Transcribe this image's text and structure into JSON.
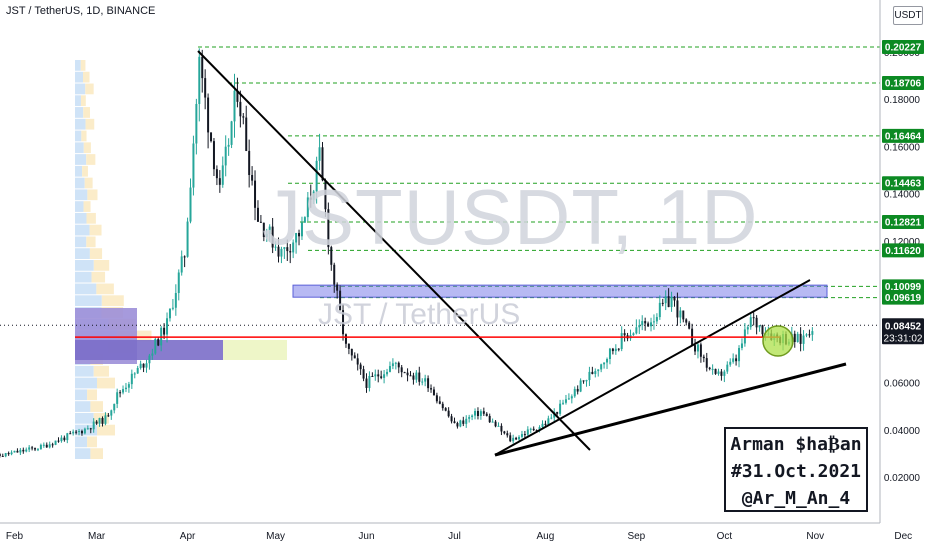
{
  "header": {
    "symbol_title": "JST / TetherUS, 1D, BINANCE",
    "currency": "USDT"
  },
  "watermark": {
    "main": "JSTUSDT, 1D",
    "sub": "JST / TetherUS"
  },
  "signature": {
    "line1": "Arman $ha₿an",
    "line2": "#31.Oct.2021",
    "line3": "@Ar_M_An_4"
  },
  "colors": {
    "up_candle": "#26a69a",
    "down_candle": "#131722",
    "level_line": "#22a022",
    "level_label_bg": "#0c8a23",
    "support_line": "#ff0000",
    "range_box": "#7b7fea",
    "highlight_circle": "#aee04a",
    "last_price_bg": "#131722"
  },
  "chart_data": {
    "type": "candlestick",
    "title": "JST / TetherUS, 1D, BINANCE",
    "exchange": "BINANCE",
    "timeframe": "1D",
    "x_tick_labels": [
      "Feb",
      "Mar",
      "Apr",
      "May",
      "Jun",
      "Jul",
      "Aug",
      "Sep",
      "Oct",
      "Nov",
      "Dec"
    ],
    "y_tick_labels": [
      "0.02000",
      "0.04000",
      "0.06000",
      "0.08000",
      "0.10000",
      "0.12000",
      "0.14000",
      "0.16000",
      "0.18000",
      "0.20000"
    ],
    "ylim": [
      0.011,
      0.2185
    ],
    "levels": [
      {
        "value": 0.20227,
        "label": "0.20227"
      },
      {
        "value": 0.18706,
        "label": "0.18706"
      },
      {
        "value": 0.16464,
        "label": "0.16464"
      },
      {
        "value": 0.14463,
        "label": "0.14463"
      },
      {
        "value": 0.12821,
        "label": "0.12821"
      },
      {
        "value": 0.1162,
        "label": "0.11620"
      },
      {
        "value": 0.10099,
        "label": "0.10099"
      },
      {
        "value": 0.09619,
        "label": "0.09619"
      }
    ],
    "support_level": 0.0795,
    "resistance_zone": [
      0.0964,
      0.1015
    ],
    "last_price": {
      "value": 0.08452,
      "label": "0.08452",
      "countdown": "23:31:02"
    },
    "price_path": [
      {
        "date": "2021-01-22",
        "price": 0.028
      },
      {
        "date": "2021-02-10",
        "price": 0.033
      },
      {
        "date": "2021-02-24",
        "price": 0.04
      },
      {
        "date": "2021-03-04",
        "price": 0.045
      },
      {
        "date": "2021-03-08",
        "price": 0.055
      },
      {
        "date": "2021-03-18",
        "price": 0.07
      },
      {
        "date": "2021-03-25",
        "price": 0.085
      },
      {
        "date": "2021-03-31",
        "price": 0.115
      },
      {
        "date": "2021-04-05",
        "price": 0.195
      },
      {
        "date": "2021-04-12",
        "price": 0.14
      },
      {
        "date": "2021-04-18",
        "price": 0.185
      },
      {
        "date": "2021-04-25",
        "price": 0.13
      },
      {
        "date": "2021-05-03",
        "price": 0.115
      },
      {
        "date": "2021-05-10",
        "price": 0.125
      },
      {
        "date": "2021-05-16",
        "price": 0.155
      },
      {
        "date": "2021-05-20",
        "price": 0.11
      },
      {
        "date": "2021-05-25",
        "price": 0.075
      },
      {
        "date": "2021-06-01",
        "price": 0.06
      },
      {
        "date": "2021-06-10",
        "price": 0.068
      },
      {
        "date": "2021-06-22",
        "price": 0.06
      },
      {
        "date": "2021-07-01",
        "price": 0.042
      },
      {
        "date": "2021-07-10",
        "price": 0.048
      },
      {
        "date": "2021-07-20",
        "price": 0.036
      },
      {
        "date": "2021-08-01",
        "price": 0.043
      },
      {
        "date": "2021-08-15",
        "price": 0.062
      },
      {
        "date": "2021-08-28",
        "price": 0.08
      },
      {
        "date": "2021-09-05",
        "price": 0.086
      },
      {
        "date": "2021-09-13",
        "price": 0.096
      },
      {
        "date": "2021-09-20",
        "price": 0.078
      },
      {
        "date": "2021-09-28",
        "price": 0.062
      },
      {
        "date": "2021-10-05",
        "price": 0.07
      },
      {
        "date": "2021-10-10",
        "price": 0.087
      },
      {
        "date": "2021-10-18",
        "price": 0.08
      },
      {
        "date": "2021-10-27",
        "price": 0.078
      },
      {
        "date": "2021-10-31",
        "price": 0.0845
      }
    ]
  }
}
